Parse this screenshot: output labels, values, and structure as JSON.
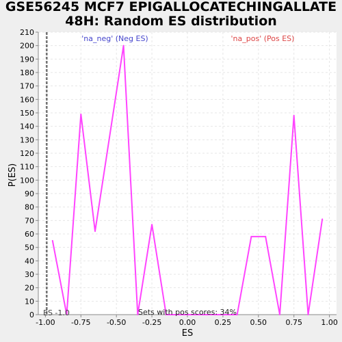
{
  "title_line1": "GSE56245 MCF7 EPIGALLOCATECHINGALLATE",
  "title_line2": "48H: Random ES distribution",
  "annotations": {
    "neg": "'na_neg' (Neg ES)",
    "pos": "'na_pos' (Pos ES)",
    "es_marker": "ES -1.0",
    "pos_scores": "Sets with pos scores: 34%"
  },
  "colors": {
    "line": "#ff44ff",
    "neg_label": "#4444cc",
    "pos_label": "#dd4444",
    "plot_bg": "#ffffff",
    "grid": "#e6e6e6",
    "marker": "#555555"
  },
  "chart_data": {
    "type": "line",
    "title": "GSE56245 MCF7 EPIGALLOCATECHINGALLATE 48H: Random ES distribution",
    "xlabel": "ES",
    "ylabel": "P(ES)",
    "xlim": [
      -1.05,
      1.05
    ],
    "ylim": [
      0,
      210
    ],
    "grid": true,
    "xticks": [
      -1.0,
      -0.75,
      -0.5,
      -0.25,
      0.0,
      0.25,
      0.5,
      0.75,
      1.0
    ],
    "xtick_labels": [
      "-1.00",
      "-0.75",
      "-0.50",
      "-0.25",
      "0.00",
      "0.25",
      "0.50",
      "0.75",
      "1.00"
    ],
    "yticks": [
      0,
      10,
      20,
      30,
      40,
      50,
      60,
      70,
      80,
      90,
      100,
      110,
      120,
      130,
      140,
      150,
      160,
      170,
      180,
      190,
      200,
      210
    ],
    "observed_es": -1.0,
    "series": [
      {
        "x": [
          -0.95,
          -0.85,
          -0.75,
          -0.65,
          -0.45,
          -0.35,
          -0.25,
          -0.15,
          0.35,
          0.45,
          0.55,
          0.65,
          0.75,
          0.85,
          0.95
        ],
        "y": [
          55,
          0,
          149,
          62,
          200,
          0,
          67,
          0,
          0,
          58,
          58,
          0,
          148,
          0,
          71
        ]
      }
    ]
  }
}
